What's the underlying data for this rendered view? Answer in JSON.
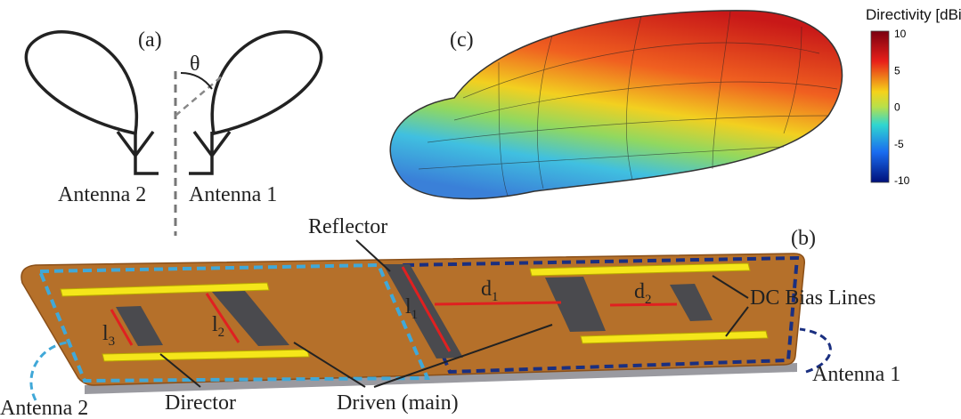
{
  "panel_a": {
    "label": "(a)",
    "angle": "θ",
    "antenna_left": "Antenna 2",
    "antenna_right": "Antenna 1"
  },
  "panel_b": {
    "label": "(b)",
    "reflector": "Reflector",
    "bias_lines": "DC Bias Lines",
    "director": "Director",
    "driven": "Driven (main)",
    "antenna_1": "Antenna 1",
    "antenna_2": "Antenna 2",
    "l1": {
      "base": "l",
      "sub": "1"
    },
    "l2": {
      "base": "l",
      "sub": "2"
    },
    "l3": {
      "base": "l",
      "sub": "3"
    },
    "d1": {
      "base": "d",
      "sub": "1"
    },
    "d2": {
      "base": "d",
      "sub": "2"
    }
  },
  "panel_c": {
    "label": "(c)",
    "colorbar": {
      "title": "Directivity [dBi]",
      "ticks": [
        10,
        5,
        0,
        -5,
        -10
      ]
    }
  }
}
